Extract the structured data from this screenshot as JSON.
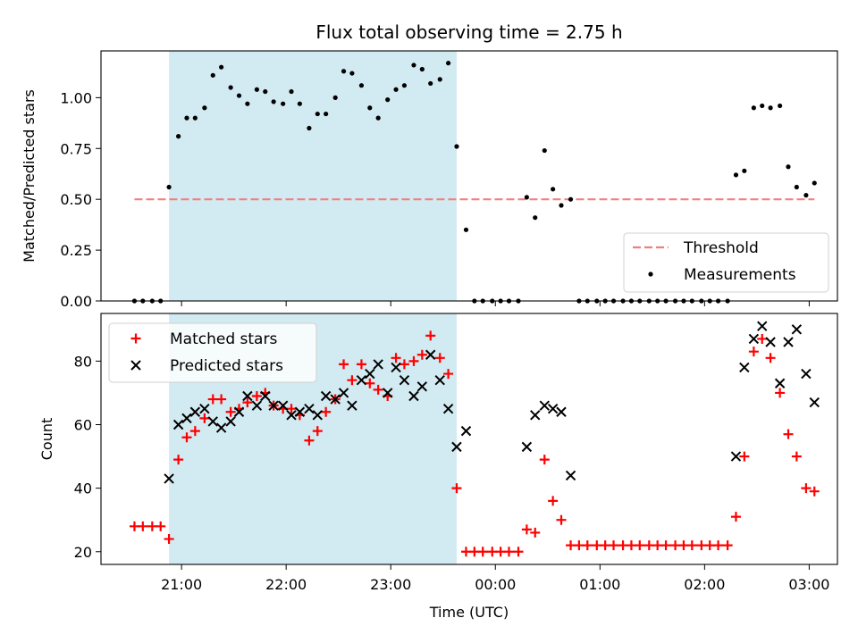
{
  "figure": {
    "title": "Flux total observing time = 2.75 h",
    "xlabel": "Time (UTC)",
    "colors": {
      "threshold": "#f08080",
      "measurements": "#000000",
      "matched": "#ff0000",
      "predicted": "#000000",
      "span": "#add8e6"
    }
  },
  "chart_data": [
    {
      "type": "scatter",
      "title": "Flux total observing time = 2.75 h",
      "xlabel": "",
      "ylabel": "Matched/Predicted stars",
      "x_unit": "hours since 00:00 UTC",
      "xlim": [
        -3.77,
        3.27
      ],
      "ylim": [
        0.0,
        1.23
      ],
      "xticks": [
        -3,
        -2,
        -1,
        0,
        1,
        2,
        3
      ],
      "xtick_labels": [
        "21:00",
        "22:00",
        "23:00",
        "00:00",
        "01:00",
        "02:00",
        "03:00"
      ],
      "yticks": [
        0.0,
        0.25,
        0.5,
        0.75,
        1.0
      ],
      "ytick_labels": [
        "0.00",
        "0.25",
        "0.50",
        "0.75",
        "1.00"
      ],
      "legend_position": "lower-right",
      "observing_span": [
        -3.12,
        -0.37
      ],
      "threshold": {
        "name": "Threshold",
        "value": 0.5,
        "x_range": [
          -3.45,
          3.05
        ]
      },
      "measurements": {
        "name": "Measurements",
        "x": [
          -3.45,
          -3.37,
          -3.28,
          -3.2,
          -3.12,
          -3.03,
          -2.95,
          -2.87,
          -2.78,
          -2.7,
          -2.62,
          -2.53,
          -2.45,
          -2.37,
          -2.28,
          -2.2,
          -2.12,
          -2.03,
          -1.95,
          -1.87,
          -1.78,
          -1.7,
          -1.62,
          -1.53,
          -1.45,
          -1.37,
          -1.28,
          -1.2,
          -1.12,
          -1.03,
          -0.95,
          -0.87,
          -0.78,
          -0.7,
          -0.62,
          -0.53,
          -0.45,
          -0.37,
          -0.28,
          -0.2,
          -0.12,
          -0.03,
          0.05,
          0.13,
          0.22,
          0.3,
          0.38,
          0.47,
          0.55,
          0.63,
          0.72,
          0.8,
          0.88,
          0.97,
          1.05,
          1.13,
          1.22,
          1.3,
          1.38,
          1.47,
          1.55,
          1.63,
          1.72,
          1.8,
          1.88,
          1.97,
          2.05,
          2.13,
          2.22,
          2.3,
          2.38,
          2.47,
          2.55,
          2.63,
          2.72,
          2.8,
          2.88,
          2.97,
          3.05
        ],
        "y": [
          0.0,
          0.0,
          0.0,
          0.0,
          0.56,
          0.81,
          0.9,
          0.9,
          0.95,
          1.11,
          1.15,
          1.05,
          1.01,
          0.97,
          1.04,
          1.03,
          0.98,
          0.97,
          1.03,
          0.97,
          0.85,
          0.92,
          0.92,
          1.0,
          1.13,
          1.12,
          1.06,
          0.95,
          0.9,
          0.99,
          1.04,
          1.06,
          1.16,
          1.14,
          1.07,
          1.09,
          1.17,
          0.76,
          0.35,
          0.0,
          0.0,
          0.0,
          0.0,
          0.0,
          0.0,
          0.51,
          0.41,
          0.74,
          0.55,
          0.47,
          0.5,
          0.0,
          0.0,
          0.0,
          0.0,
          0.0,
          0.0,
          0.0,
          0.0,
          0.0,
          0.0,
          0.0,
          0.0,
          0.0,
          0.0,
          0.0,
          0.0,
          0.0,
          0.0,
          0.62,
          0.64,
          0.95,
          0.96,
          0.95,
          0.96,
          0.66,
          0.56,
          0.52,
          0.58
        ]
      }
    },
    {
      "type": "scatter",
      "title": "",
      "xlabel": "Time (UTC)",
      "ylabel": "Count",
      "x_unit": "hours since 00:00 UTC",
      "xlim": [
        -3.77,
        3.27
      ],
      "ylim": [
        16,
        95
      ],
      "xticks": [
        -3,
        -2,
        -1,
        0,
        1,
        2,
        3
      ],
      "xtick_labels": [
        "21:00",
        "22:00",
        "23:00",
        "00:00",
        "01:00",
        "02:00",
        "03:00"
      ],
      "yticks": [
        20,
        40,
        60,
        80
      ],
      "ytick_labels": [
        "20",
        "40",
        "60",
        "80"
      ],
      "legend_position": "upper-left",
      "observing_span": [
        -3.12,
        -0.37
      ],
      "series": [
        {
          "name": "Matched stars",
          "marker": "plus",
          "x": [
            -3.45,
            -3.37,
            -3.28,
            -3.2,
            -3.12,
            -3.03,
            -2.95,
            -2.87,
            -2.78,
            -2.7,
            -2.62,
            -2.53,
            -2.45,
            -2.37,
            -2.28,
            -2.2,
            -2.12,
            -2.03,
            -1.95,
            -1.87,
            -1.78,
            -1.7,
            -1.62,
            -1.53,
            -1.45,
            -1.37,
            -1.28,
            -1.2,
            -1.12,
            -1.03,
            -0.95,
            -0.87,
            -0.78,
            -0.7,
            -0.62,
            -0.53,
            -0.45,
            -0.37,
            -0.28,
            -0.2,
            -0.12,
            -0.03,
            0.05,
            0.13,
            0.22,
            0.3,
            0.38,
            0.47,
            0.55,
            0.63,
            0.72,
            0.8,
            0.88,
            0.97,
            1.05,
            1.13,
            1.22,
            1.3,
            1.38,
            1.47,
            1.55,
            1.63,
            1.72,
            1.8,
            1.88,
            1.97,
            2.05,
            2.13,
            2.22,
            2.3,
            2.38,
            2.47,
            2.55,
            2.63,
            2.72,
            2.8,
            2.88,
            2.97,
            3.05
          ],
          "values": [
            28,
            28,
            28,
            28,
            24,
            49,
            56,
            58,
            62,
            68,
            68,
            64,
            65,
            67,
            69,
            70,
            66,
            65,
            65,
            63,
            55,
            58,
            64,
            68,
            79,
            74,
            79,
            73,
            71,
            69,
            81,
            79,
            80,
            82,
            88,
            81,
            76,
            40,
            20,
            20,
            20,
            20,
            20,
            20,
            20,
            27,
            26,
            49,
            36,
            30,
            22,
            22,
            22,
            22,
            22,
            22,
            22,
            22,
            22,
            22,
            22,
            22,
            22,
            22,
            22,
            22,
            22,
            22,
            22,
            31,
            50,
            83,
            87,
            81,
            70,
            57,
            50,
            40,
            39
          ]
        },
        {
          "name": "Predicted stars",
          "marker": "x",
          "x": [
            -3.12,
            -3.03,
            -2.95,
            -2.87,
            -2.78,
            -2.7,
            -2.62,
            -2.53,
            -2.45,
            -2.37,
            -2.28,
            -2.2,
            -2.12,
            -2.03,
            -1.95,
            -1.87,
            -1.78,
            -1.7,
            -1.62,
            -1.53,
            -1.45,
            -1.37,
            -1.28,
            -1.2,
            -1.12,
            -1.03,
            -0.95,
            -0.87,
            -0.78,
            -0.7,
            -0.62,
            -0.53,
            -0.45,
            -0.37,
            -0.28,
            0.3,
            0.38,
            0.47,
            0.55,
            0.63,
            0.72,
            2.3,
            2.38,
            2.47,
            2.55,
            2.63,
            2.72,
            2.8,
            2.88,
            2.97,
            3.05
          ],
          "values": [
            43,
            60,
            62,
            64,
            65,
            61,
            59,
            61,
            64,
            69,
            66,
            69,
            66,
            66,
            63,
            64,
            65,
            63,
            69,
            68,
            70,
            66,
            74,
            76,
            79,
            70,
            78,
            74,
            69,
            72,
            82,
            74,
            65,
            53,
            58,
            53,
            63,
            66,
            65,
            64,
            44,
            50,
            78,
            87,
            91,
            86,
            73,
            86,
            90,
            76,
            67
          ]
        }
      ]
    }
  ]
}
